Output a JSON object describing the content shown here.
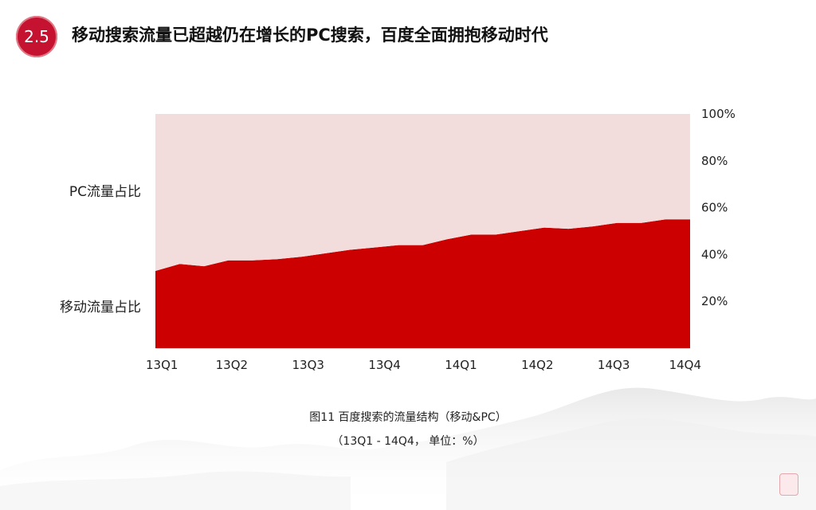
{
  "header": {
    "section_number": "2.5",
    "title": "移动搜索流量已超越仍在增长的PC搜索，百度全面拥抱移动时代"
  },
  "caption": {
    "line1": "图11 百度搜索的流量结构（移动&PC）",
    "line2": "（13Q1 - 14Q4， 单位：%）"
  },
  "colors": {
    "mobile": "#cc0000",
    "pc": "#f2dcdc",
    "badge": "#c41230"
  },
  "chart_data": {
    "type": "area",
    "stacked": true,
    "x_tick_labels": [
      "13Q1",
      "13Q2",
      "13Q3",
      "13Q4",
      "14Q1",
      "14Q2",
      "14Q3",
      "14Q4"
    ],
    "y_tick_labels": [
      "20%",
      "40%",
      "60%",
      "80%",
      "100%"
    ],
    "y_ticks": [
      20,
      40,
      60,
      80,
      100
    ],
    "ylim": [
      0,
      100
    ],
    "y_axis_side": "right",
    "x_points": 23,
    "series": [
      {
        "name": "移动流量占比",
        "color": "#cc0000",
        "values": [
          33,
          36,
          35,
          37.5,
          37.5,
          38,
          39,
          40.5,
          42,
          43,
          44,
          44,
          46.5,
          48.5,
          48.5,
          50,
          51.5,
          51,
          52,
          53.5,
          53.5,
          55,
          55
        ]
      },
      {
        "name": "PC流量占比",
        "color": "#f2dcdc",
        "values": [
          67,
          64,
          65,
          62.5,
          62.5,
          62,
          61,
          59.5,
          58,
          57,
          56,
          56,
          53.5,
          51.5,
          51.5,
          50,
          48.5,
          49,
          48,
          46.5,
          46.5,
          45,
          45
        ]
      }
    ]
  }
}
